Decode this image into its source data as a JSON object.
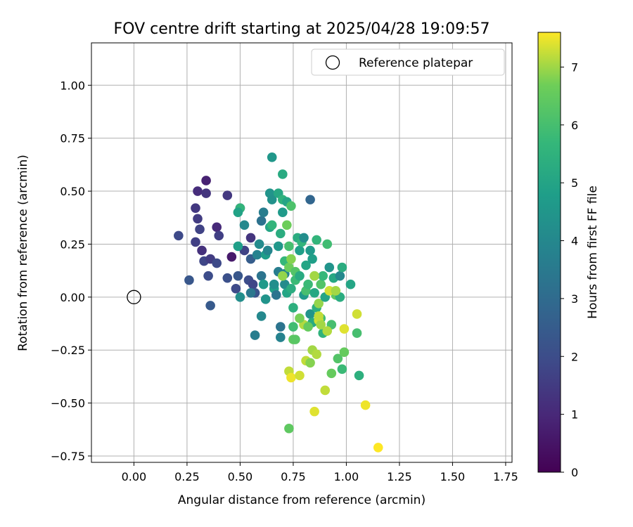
{
  "chart_data": {
    "type": "scatter",
    "title": "FOV centre drift starting at 2025/04/28 19:09:57",
    "xlabel": "Angular distance from reference (arcmin)",
    "ylabel": "Rotation from reference (arcmin)",
    "xlim": [
      -0.2,
      1.78
    ],
    "ylim": [
      -0.78,
      1.2
    ],
    "x_ticks": [
      "0.00",
      "0.25",
      "0.50",
      "0.75",
      "1.00",
      "1.25",
      "1.50",
      "1.75"
    ],
    "x_tick_values": [
      0,
      0.25,
      0.5,
      0.75,
      1.0,
      1.25,
      1.5,
      1.75
    ],
    "y_ticks": [
      "−0.75",
      "−0.50",
      "−0.25",
      "0.00",
      "0.25",
      "0.50",
      "0.75",
      "1.00"
    ],
    "y_tick_values": [
      -0.75,
      -0.5,
      -0.25,
      0,
      0.25,
      0.5,
      0.75,
      1.0
    ],
    "grid": true,
    "legend": {
      "placement": "top-right",
      "entries": [
        "Reference platepar"
      ]
    },
    "reference_point": {
      "x": 0.0,
      "y": 0.0
    },
    "colorbar": {
      "label": "Hours from first FF file",
      "colormap": "viridis",
      "range": [
        0,
        7.6
      ],
      "ticks": [
        "0",
        "1",
        "2",
        "3",
        "4",
        "5",
        "6",
        "7"
      ],
      "tick_values": [
        0,
        1,
        2,
        3,
        4,
        5,
        6,
        7
      ]
    },
    "points": [
      [
        0.21,
        0.29,
        1.9
      ],
      [
        0.26,
        0.08,
        2.3
      ],
      [
        0.29,
        0.42,
        1.4
      ],
      [
        0.29,
        0.26,
        1.6
      ],
      [
        0.3,
        0.5,
        1.1
      ],
      [
        0.3,
        0.37,
        1.5
      ],
      [
        0.31,
        0.32,
        1.7
      ],
      [
        0.32,
        0.22,
        1.2
      ],
      [
        0.34,
        0.55,
        0.8
      ],
      [
        0.34,
        0.49,
        1.3
      ],
      [
        0.33,
        0.17,
        1.8
      ],
      [
        0.35,
        0.1,
        2.0
      ],
      [
        0.36,
        -0.04,
        2.4
      ],
      [
        0.36,
        0.18,
        1.5
      ],
      [
        0.39,
        0.33,
        1.0
      ],
      [
        0.39,
        0.16,
        1.9
      ],
      [
        0.4,
        0.29,
        1.6
      ],
      [
        0.44,
        0.48,
        1.4
      ],
      [
        0.44,
        0.09,
        2.1
      ],
      [
        0.46,
        0.19,
        0.6
      ],
      [
        0.48,
        0.04,
        1.9
      ],
      [
        0.49,
        0.1,
        2.3
      ],
      [
        0.5,
        0.42,
        0.9
      ],
      [
        0.52,
        0.22,
        1.7
      ],
      [
        0.54,
        0.08,
        2.0
      ],
      [
        0.55,
        0.18,
        2.5
      ],
      [
        0.55,
        0.28,
        1.3
      ],
      [
        0.56,
        0.06,
        1.8
      ],
      [
        0.57,
        0.02,
        2.2
      ],
      [
        0.5,
        0.42,
        5.6
      ],
      [
        0.49,
        0.4,
        4.9
      ],
      [
        0.49,
        0.24,
        4.8
      ],
      [
        0.5,
        0.0,
        4.2
      ],
      [
        0.52,
        0.34,
        4.0
      ],
      [
        0.55,
        0.02,
        3.4
      ],
      [
        0.57,
        -0.18,
        3.6
      ],
      [
        0.58,
        0.2,
        3.8
      ],
      [
        0.59,
        0.25,
        4.1
      ],
      [
        0.6,
        0.1,
        3.3
      ],
      [
        0.6,
        -0.09,
        4.0
      ],
      [
        0.6,
        0.36,
        3.2
      ],
      [
        0.61,
        0.4,
        3.6
      ],
      [
        0.61,
        0.06,
        4.6
      ],
      [
        0.62,
        -0.01,
        4.4
      ],
      [
        0.62,
        0.2,
        4.7
      ],
      [
        0.63,
        0.22,
        3.9
      ],
      [
        0.64,
        0.33,
        5.0
      ],
      [
        0.64,
        0.49,
        4.4
      ],
      [
        0.65,
        0.66,
        4.5
      ],
      [
        0.65,
        0.46,
        4.3
      ],
      [
        0.65,
        0.34,
        5.6
      ],
      [
        0.66,
        0.04,
        4.8
      ],
      [
        0.66,
        0.06,
        4.2
      ],
      [
        0.67,
        0.01,
        3.3
      ],
      [
        0.68,
        0.49,
        5.1
      ],
      [
        0.68,
        0.12,
        3.6
      ],
      [
        0.68,
        0.24,
        4.5
      ],
      [
        0.69,
        0.3,
        5.3
      ],
      [
        0.69,
        -0.14,
        3.3
      ],
      [
        0.69,
        -0.19,
        3.8
      ],
      [
        0.7,
        0.46,
        5.5
      ],
      [
        0.7,
        0.4,
        4.6
      ],
      [
        0.7,
        0.58,
        5.2
      ],
      [
        0.71,
        0.17,
        5.7
      ],
      [
        0.71,
        0.06,
        4.1
      ],
      [
        0.71,
        0.11,
        3.9
      ],
      [
        0.72,
        0.34,
        6.6
      ],
      [
        0.72,
        0.45,
        5.0
      ],
      [
        0.72,
        0.02,
        5.0
      ],
      [
        0.73,
        0.24,
        6.0
      ],
      [
        0.73,
        0.14,
        6.6
      ],
      [
        0.74,
        0.43,
        6.1
      ],
      [
        0.74,
        0.18,
        6.8
      ],
      [
        0.74,
        0.04,
        5.3
      ],
      [
        0.75,
        -0.05,
        5.4
      ],
      [
        0.75,
        -0.14,
        5.9
      ],
      [
        0.75,
        -0.2,
        6.4
      ],
      [
        0.76,
        0.08,
        5.8
      ],
      [
        0.76,
        0.12,
        6.2
      ],
      [
        0.77,
        0.28,
        5.3
      ],
      [
        0.78,
        0.22,
        4.8
      ],
      [
        0.78,
        0.1,
        5.2
      ],
      [
        0.79,
        0.26,
        5.6
      ],
      [
        0.8,
        0.28,
        4.2
      ],
      [
        0.8,
        0.01,
        4.6
      ],
      [
        0.81,
        0.15,
        5.0
      ],
      [
        0.81,
        0.03,
        6.0
      ],
      [
        0.82,
        0.06,
        5.8
      ],
      [
        0.83,
        0.46,
        2.8
      ],
      [
        0.83,
        0.22,
        4.6
      ],
      [
        0.83,
        -0.08,
        4.4
      ],
      [
        0.84,
        0.18,
        4.8
      ],
      [
        0.84,
        -0.12,
        5.2
      ],
      [
        0.85,
        0.1,
        6.4
      ],
      [
        0.85,
        0.02,
        5.1
      ],
      [
        0.86,
        0.27,
        5.6
      ],
      [
        0.86,
        -0.05,
        5.4
      ],
      [
        0.87,
        -0.03,
        6.9
      ],
      [
        0.88,
        -0.1,
        5.9
      ],
      [
        0.88,
        0.06,
        6.2
      ],
      [
        0.89,
        -0.17,
        5.5
      ],
      [
        0.89,
        0.1,
        5.7
      ],
      [
        0.9,
        0.0,
        5.0
      ],
      [
        0.91,
        0.25,
        5.9
      ],
      [
        0.92,
        0.14,
        4.4
      ],
      [
        0.93,
        -0.13,
        6.0
      ],
      [
        0.93,
        -0.36,
        6.5
      ],
      [
        0.94,
        0.09,
        5.1
      ],
      [
        0.95,
        0.01,
        6.4
      ],
      [
        0.96,
        -0.29,
        6.2
      ],
      [
        0.97,
        0.1,
        4.0
      ],
      [
        0.97,
        0.0,
        5.3
      ],
      [
        0.98,
        0.14,
        5.3
      ],
      [
        0.98,
        -0.34,
        5.8
      ],
      [
        0.99,
        -0.26,
        6.5
      ],
      [
        1.02,
        0.06,
        5.0
      ],
      [
        1.05,
        -0.17,
        6.0
      ],
      [
        1.06,
        -0.37,
        5.4
      ],
      [
        0.7,
        0.1,
        6.9
      ],
      [
        0.73,
        -0.35,
        7.2
      ],
      [
        0.74,
        -0.38,
        7.5
      ],
      [
        0.73,
        -0.62,
        6.4
      ],
      [
        0.78,
        -0.37,
        7.3
      ],
      [
        0.8,
        -0.13,
        7.1
      ],
      [
        0.81,
        -0.3,
        7.2
      ],
      [
        0.83,
        -0.31,
        6.8
      ],
      [
        0.84,
        -0.25,
        7.0
      ],
      [
        0.85,
        -0.54,
        7.4
      ],
      [
        0.86,
        -0.27,
        7.1
      ],
      [
        0.87,
        -0.11,
        7.3
      ],
      [
        0.88,
        -0.13,
        7.0
      ],
      [
        0.9,
        -0.44,
        7.2
      ],
      [
        0.91,
        -0.16,
        7.1
      ],
      [
        0.92,
        0.03,
        7.3
      ],
      [
        0.95,
        0.03,
        7.0
      ],
      [
        0.99,
        -0.15,
        7.4
      ],
      [
        1.05,
        -0.08,
        7.3
      ],
      [
        1.09,
        -0.51,
        7.5
      ],
      [
        1.15,
        -0.71,
        7.6
      ],
      [
        0.85,
        0.1,
        7.0
      ],
      [
        0.87,
        -0.09,
        7.2
      ],
      [
        0.78,
        -0.1,
        6.7
      ],
      [
        0.82,
        -0.14,
        6.5
      ],
      [
        0.76,
        -0.2,
        6.3
      ]
    ]
  }
}
